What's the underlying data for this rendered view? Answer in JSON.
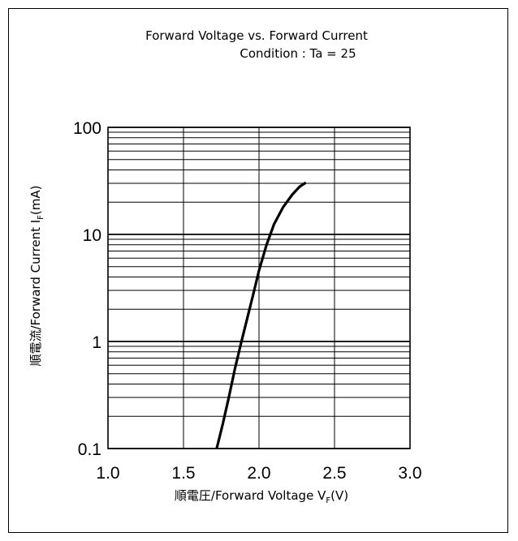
{
  "chart_data": {
    "type": "line",
    "title": "Forward Voltage vs. Forward Current",
    "subtitle": "Condition : Ta = 25",
    "xlabel": "順電圧/Forward Voltage",
    "xlabel_symbol": "V",
    "xlabel_sub": "F",
    "xlabel_unit": "(V)",
    "ylabel": "順電流/Forward Current",
    "ylabel_symbol": "I",
    "ylabel_sub": "F",
    "ylabel_unit": "(mA)",
    "xlim": [
      1.0,
      3.0
    ],
    "ylim": [
      0.1,
      100
    ],
    "yscale": "log",
    "grid": true,
    "x_ticks": [
      "1.0",
      "1.5",
      "2.0",
      "2.5",
      "3.0"
    ],
    "y_ticks": [
      "0.1",
      "1",
      "10",
      "100"
    ],
    "series": [
      {
        "x": [
          1.72,
          1.76,
          1.8,
          1.84,
          1.88,
          1.92,
          1.96,
          2.0,
          2.05,
          2.1,
          2.16,
          2.22,
          2.27,
          2.31
        ],
        "y": [
          0.1,
          0.17,
          0.3,
          0.55,
          0.95,
          1.6,
          2.7,
          4.6,
          8.0,
          12.5,
          18.0,
          23.5,
          28.0,
          30.5
        ]
      }
    ]
  }
}
